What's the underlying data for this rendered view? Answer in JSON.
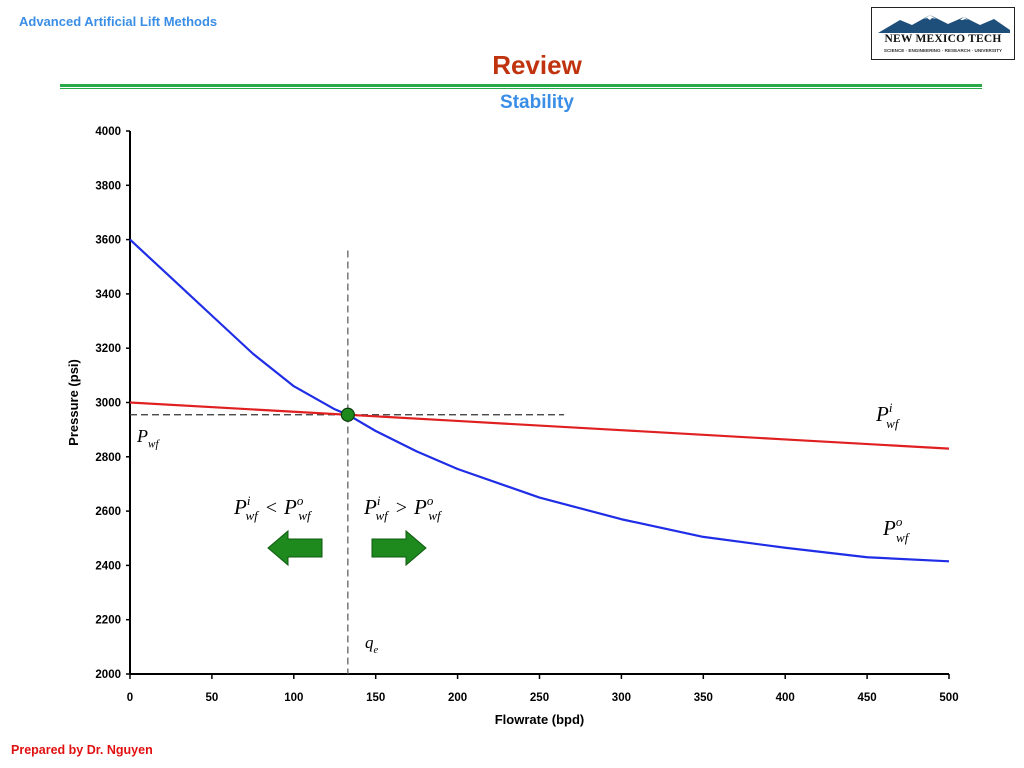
{
  "header": {
    "course_title": "Advanced Artificial Lift Methods",
    "slide_title": "Review",
    "slide_subtitle": "Stability",
    "logo_name": "NEW MEXICO TECH",
    "logo_tagline": "SCIENCE · ENGINEERING · RESEARCH · UNIVERSITY"
  },
  "footer": {
    "author": "Prepared by Dr. Nguyen"
  },
  "colors": {
    "course_title": "#3a8ee6",
    "slide_title": "#c0330f",
    "rule": "#2aa84a",
    "footer": "#e01010",
    "inflow_curve": "#e02020",
    "outflow_curve": "#1f2ee6",
    "equilibrium_point": "#1e8a1e",
    "arrows": "#1e8a1e"
  },
  "chart_data": {
    "type": "line",
    "xlabel": "Flowrate (bpd)",
    "ylabel": "Pressure (psi)",
    "xlim": [
      0,
      500
    ],
    "ylim": [
      2000,
      4000
    ],
    "x_ticks": [
      0,
      50,
      100,
      150,
      200,
      250,
      300,
      350,
      400,
      450,
      500
    ],
    "y_ticks": [
      2000,
      2200,
      2400,
      2600,
      2800,
      3000,
      3200,
      3400,
      3600,
      3800,
      4000
    ],
    "grid": false,
    "series": [
      {
        "key": "inflow",
        "label_main": "P",
        "label_sub": "wf",
        "label_sup": "i",
        "color": "#e02020",
        "x": [
          0,
          100,
          200,
          300,
          400,
          500
        ],
        "y": [
          3000,
          2966,
          2932,
          2898,
          2864,
          2830
        ]
      },
      {
        "key": "outflow",
        "label_main": "P",
        "label_sub": "wf",
        "label_sup": "o",
        "color": "#1f2ee6",
        "x": [
          0,
          25,
          50,
          75,
          100,
          125,
          133,
          150,
          175,
          200,
          250,
          300,
          350,
          400,
          450,
          500
        ],
        "y": [
          3600,
          3460,
          3320,
          3180,
          3060,
          2975,
          2955,
          2895,
          2820,
          2755,
          2650,
          2570,
          2505,
          2465,
          2430,
          2415
        ]
      }
    ],
    "equilibrium": {
      "x": 133,
      "y": 2955
    },
    "equilibrium_x_label": {
      "main": "q",
      "sub": "e"
    },
    "equilibrium_y_label": {
      "main": "P",
      "sub": "wf"
    },
    "annotations": [
      {
        "text_left": "P",
        "sub_left": "wf",
        "sup_left": "i",
        "operator": "<",
        "text_right": "P",
        "sub_right": "wf",
        "sup_right": "o",
        "arrow": "left"
      },
      {
        "text_left": "P",
        "sub_left": "wf",
        "sup_left": "i",
        "operator": ">",
        "text_right": "P",
        "sub_right": "wf",
        "sup_right": "o",
        "arrow": "right"
      }
    ]
  }
}
